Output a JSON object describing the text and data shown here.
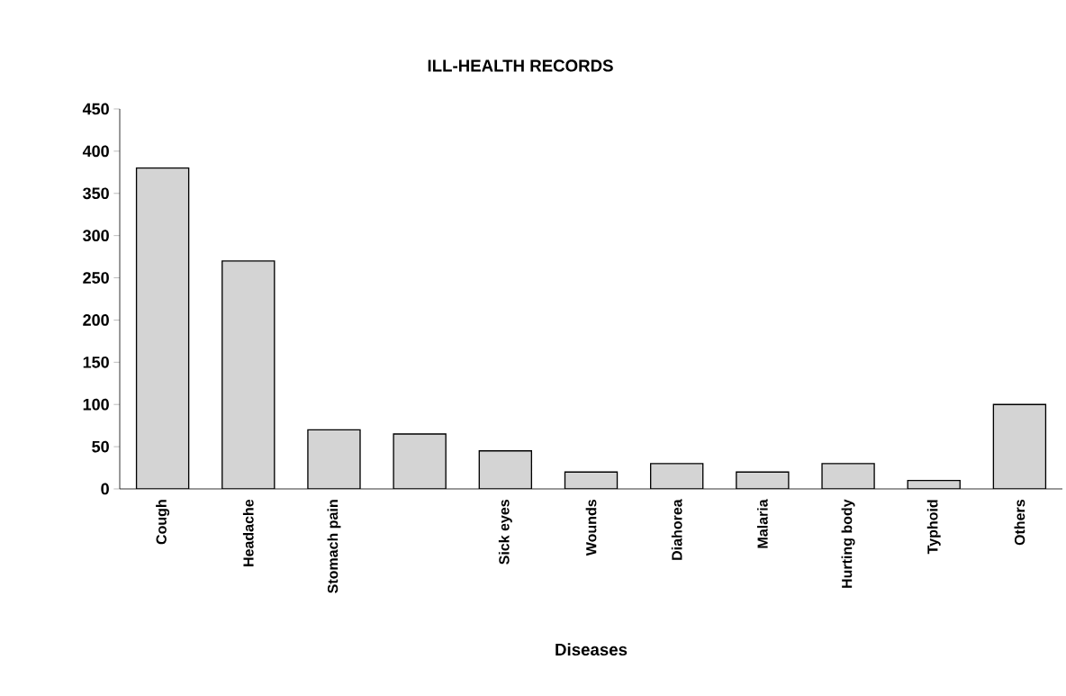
{
  "chart_data": {
    "type": "bar",
    "title": "ILL-HEALTH RECORDS",
    "xlabel": "Diseases",
    "categories": [
      "Cough",
      "Headache",
      "Stomach pain",
      null,
      "Sick eyes",
      "Wounds",
      "Diahorea",
      "Malaria",
      "Hurting body",
      "Typhoid",
      "Others"
    ],
    "values": [
      380,
      270,
      70,
      65,
      45,
      20,
      30,
      20,
      30,
      10,
      100
    ],
    "color": "#d4d4d4",
    "ylim": [
      0,
      450
    ],
    "yticks": [
      0,
      50,
      100,
      150,
      200,
      250,
      300,
      350,
      400,
      450
    ],
    "grid": false
  }
}
